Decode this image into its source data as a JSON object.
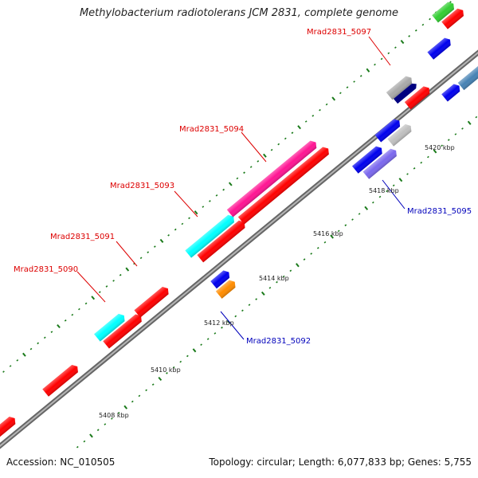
{
  "title": "Methylobacterium radiotolerans JCM 2831, complete genome",
  "footer": {
    "accession": "Accession: NC_010505",
    "summary": "Topology: circular; Length: 6,077,833 bp; Genes: 5,755"
  },
  "colors": {
    "backbone": "#888888",
    "tick": "#1a7a1a",
    "label_red": "#dd0000",
    "label_blue": "#0000bb"
  },
  "scale_labels": [
    "5408 kbp",
    "5410 kbp",
    "5412 kbp",
    "5414 kbp",
    "5416 kbp",
    "5418 kbp",
    "5420 kbp"
  ],
  "gene_labels": [
    {
      "text": "Mrad2831_5090",
      "color": "red"
    },
    {
      "text": "Mrad2831_5091",
      "color": "red"
    },
    {
      "text": "Mrad2831_5093",
      "color": "red"
    },
    {
      "text": "Mrad2831_5094",
      "color": "red"
    },
    {
      "text": "Mrad2831_5097",
      "color": "red"
    },
    {
      "text": "Mrad2831_5092",
      "color": "blue"
    },
    {
      "text": "Mrad2831_5095",
      "color": "blue"
    }
  ],
  "features": [
    {
      "name": "gene-5089",
      "color": "#ff0000"
    },
    {
      "name": "gene-5089b",
      "color": "#ff0000"
    },
    {
      "name": "gene-5090",
      "color": "#00ffff"
    },
    {
      "name": "cds-5090",
      "color": "#ff0000"
    },
    {
      "name": "gene-5091",
      "color": "#ff0000"
    },
    {
      "name": "gene-5092",
      "color": "#0000ee"
    },
    {
      "name": "cds-5092",
      "color": "#ff8c00"
    },
    {
      "name": "gene-5093",
      "color": "#00ffff"
    },
    {
      "name": "cds-5093",
      "color": "#ff0000"
    },
    {
      "name": "gene-5094",
      "color": "#ff1493"
    },
    {
      "name": "cds-5094",
      "color": "#ff0000"
    },
    {
      "name": "gene-5095",
      "color": "#0000ee"
    },
    {
      "name": "cds-5095",
      "color": "#7b68ee"
    },
    {
      "name": "gene-5096",
      "color": "#0000ee"
    },
    {
      "name": "cds-5096",
      "color": "#c0c0c0"
    },
    {
      "name": "gene-5097",
      "color": "#a9a9a9"
    },
    {
      "name": "cds-5097",
      "color": "#000080"
    },
    {
      "name": "cds-5097b",
      "color": "#ff0000"
    },
    {
      "name": "gene-5098",
      "color": "#0000ee"
    },
    {
      "name": "gene-5099",
      "color": "#0000ee"
    },
    {
      "name": "cds-5099",
      "color": "#4682b4"
    },
    {
      "name": "gene-5100",
      "color": "#32cd32"
    },
    {
      "name": "cds-5100",
      "color": "#ff0000"
    }
  ]
}
